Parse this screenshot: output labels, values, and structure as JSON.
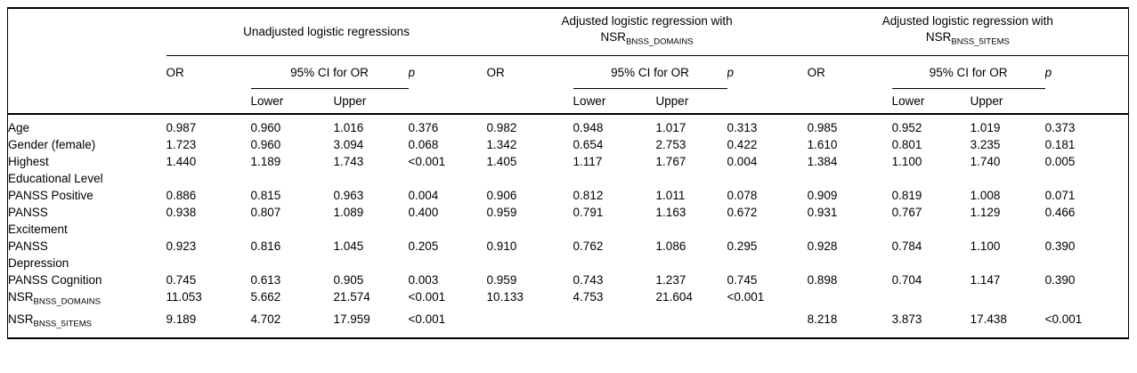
{
  "table": {
    "colors": {
      "text": "#000000",
      "border": "#000000",
      "background": "#ffffff"
    },
    "groups": [
      {
        "title": "Unadjusted logistic regressions"
      },
      {
        "title": "Adjusted logistic regression with",
        "nsr_base": "NSR",
        "nsr_sub": "BNSS_DOMAINS"
      },
      {
        "title": "Adjusted logistic regression with",
        "nsr_base": "NSR",
        "nsr_sub": "BNSS_5ITEMS"
      }
    ],
    "headers": {
      "or": "OR",
      "ci": "95% CI for OR",
      "p": "p",
      "lower": "Lower",
      "upper": "Upper"
    },
    "rows": [
      {
        "label": "Age",
        "values": [
          "0.987",
          "0.960",
          "1.016",
          "0.376",
          "0.982",
          "0.948",
          "1.017",
          "0.313",
          "0.985",
          "0.952",
          "1.019",
          "0.373"
        ]
      },
      {
        "label": "Gender (female)",
        "values": [
          "1.723",
          "0.960",
          "3.094",
          "0.068",
          "1.342",
          "0.654",
          "2.753",
          "0.422",
          "1.610",
          "0.801",
          "3.235",
          "0.181"
        ]
      },
      {
        "label": "Highest\nEducational Level",
        "values": [
          "1.440",
          "1.189",
          "1.743",
          "<0.001",
          "1.405",
          "1.117",
          "1.767",
          "0.004",
          "1.384",
          "1.100",
          "1.740",
          "0.005"
        ]
      },
      {
        "label": "PANSS Positive",
        "values": [
          "0.886",
          "0.815",
          "0.963",
          "0.004",
          "0.906",
          "0.812",
          "1.011",
          "0.078",
          "0.909",
          "0.819",
          "1.008",
          "0.071"
        ]
      },
      {
        "label": "PANSS\nExcitement",
        "values": [
          "0.938",
          "0.807",
          "1.089",
          "0.400",
          "0.959",
          "0.791",
          "1.163",
          "0.672",
          "0.931",
          "0.767",
          "1.129",
          "0.466"
        ]
      },
      {
        "label": "PANSS\nDepression",
        "values": [
          "0.923",
          "0.816",
          "1.045",
          "0.205",
          "0.910",
          "0.762",
          "1.086",
          "0.295",
          "0.928",
          "0.784",
          "1.100",
          "0.390"
        ]
      },
      {
        "label": "PANSS Cognition",
        "values": [
          "0.745",
          "0.613",
          "0.905",
          "0.003",
          "0.959",
          "0.743",
          "1.237",
          "0.745",
          "0.898",
          "0.704",
          "1.147",
          "0.390"
        ]
      },
      {
        "label": "NSR",
        "label_sub": "BNSS_DOMAINS",
        "values": [
          "11.053",
          "5.662",
          "21.574",
          "<0.001",
          "10.133",
          "4.753",
          "21.604",
          "<0.001",
          "",
          "",
          "",
          ""
        ]
      },
      {
        "label": "NSR",
        "label_sub": "BNSS_5ITEMS",
        "values": [
          "9.189",
          "4.702",
          "17.959",
          "<0.001",
          "",
          "",
          "",
          "",
          "8.218",
          "3.873",
          "17.438",
          "<0.001"
        ]
      }
    ]
  }
}
